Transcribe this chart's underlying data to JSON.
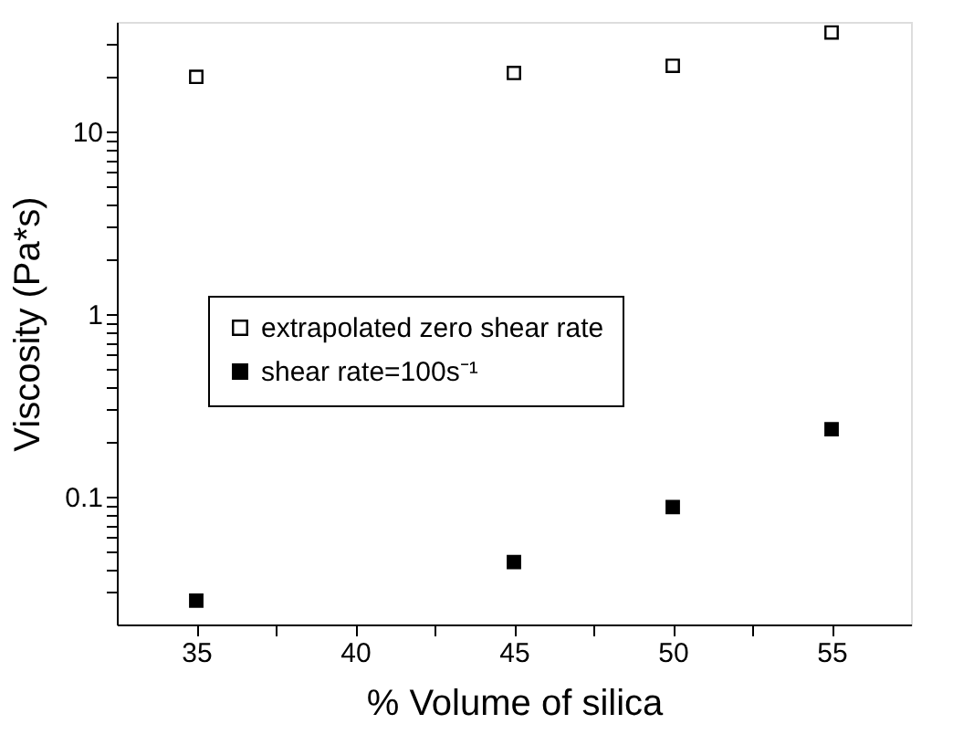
{
  "chart_data": {
    "type": "scatter",
    "xlabel": "% Volume of silica",
    "ylabel": "Viscosity (Pa*s)",
    "log": "y",
    "marker": "square",
    "legend": "left",
    "grid": false,
    "x": [
      35,
      45,
      50,
      55
    ],
    "xlim": [
      32.5,
      57.5
    ],
    "xticks": [
      35,
      {
        "value": 37.5,
        "label": null
      },
      40,
      {
        "value": 42.5,
        "label": null
      },
      45,
      {
        "value": 47.5,
        "label": null
      },
      50,
      {
        "value": 52.5,
        "label": null
      },
      55
    ],
    "ylim": [
      0.02,
      40
    ],
    "yticks": [
      {
        "value": 0.03,
        "label": null
      },
      {
        "value": 0.04,
        "label": null
      },
      {
        "value": 0.05,
        "label": null
      },
      {
        "value": 0.06,
        "label": null
      },
      {
        "value": 0.07,
        "label": null
      },
      {
        "value": 0.08,
        "label": null
      },
      {
        "value": 0.09,
        "label": null
      },
      {
        "value": 0.1,
        "label": "0.1"
      },
      {
        "value": 0.2,
        "label": null
      },
      {
        "value": 0.3,
        "label": null
      },
      {
        "value": 0.4,
        "label": null
      },
      {
        "value": 0.5,
        "label": null
      },
      {
        "value": 0.6,
        "label": null
      },
      {
        "value": 0.7,
        "label": null
      },
      {
        "value": 0.8,
        "label": null
      },
      {
        "value": 0.9,
        "label": null
      },
      {
        "value": 1,
        "label": "1"
      },
      {
        "value": 2,
        "label": null
      },
      {
        "value": 3,
        "label": null
      },
      {
        "value": 4,
        "label": null
      },
      {
        "value": 5,
        "label": null
      },
      {
        "value": 6,
        "label": null
      },
      {
        "value": 7,
        "label": null
      },
      {
        "value": 8,
        "label": null
      },
      {
        "value": 9,
        "label": null
      },
      {
        "value": 10,
        "label": "10"
      },
      {
        "value": 20,
        "label": null
      },
      {
        "value": 30,
        "label": null
      }
    ],
    "series": [
      {
        "name": "extrapolated zero shear rate",
        "color": "#000000",
        "values": [
          20,
          21,
          23,
          35
        ]
      },
      {
        "name": "shear rate=100s⁻¹",
        "color": "#000000",
        "values": [
          0.027,
          0.044,
          0.088,
          0.235
        ]
      }
    ]
  }
}
